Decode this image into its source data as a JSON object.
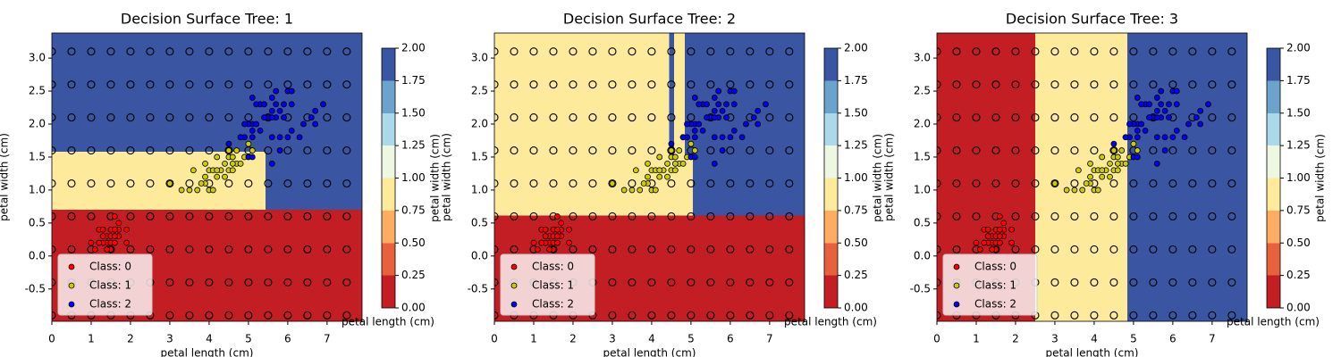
{
  "chart_data": [
    {
      "type": "surface",
      "title": "Decision Surface Tree: 1",
      "xlabel": "petal length (cm)",
      "ylabel": "petal width (cm)",
      "xlim": [
        0,
        7.89
      ],
      "ylim": [
        -0.99,
        3.38
      ],
      "xticks": [
        0,
        1,
        2,
        3,
        4,
        5,
        6,
        7
      ],
      "yticks": [
        -0.5,
        {
          "value": 0,
          "label": "0.0"
        },
        0.5,
        {
          "value": 1,
          "label": "1.0"
        },
        1.5,
        {
          "value": 2,
          "label": "2.0"
        },
        2.5,
        {
          "value": 3,
          "label": "3.0"
        }
      ],
      "regions": [
        {
          "x": [
            0,
            7.89
          ],
          "y": [
            -0.99,
            0.7
          ],
          "color": "#c41e25"
        },
        {
          "x": [
            0,
            5.43
          ],
          "y": [
            0.7,
            1.58
          ],
          "color": "#feea9b"
        },
        {
          "x": [
            5.43,
            7.89
          ],
          "y": [
            0.7,
            1.58
          ],
          "color": "#3a56a3"
        },
        {
          "x": [
            0,
            7.89
          ],
          "y": [
            1.58,
            3.38
          ],
          "color": "#3a56a3"
        }
      ],
      "mesh_x": [
        0,
        0.5,
        1,
        1.5,
        2,
        2.5,
        3,
        3.5,
        4,
        4.5,
        5,
        5.5,
        6,
        6.5,
        7,
        7.5
      ],
      "mesh_y": [
        -0.9,
        -0.4,
        0.1,
        0.6,
        1.1,
        1.6,
        2.1,
        2.6,
        3.1
      ],
      "legend": "lower left",
      "series": [
        {
          "name": "Class: 0",
          "color": "#ff0000",
          "x": [
            1.4,
            1.3,
            1.5,
            1.7,
            1.4,
            1.5,
            1.6,
            1.1,
            1.2,
            1.0,
            1.7,
            1.9,
            1.6,
            1.9,
            1.5,
            1.3,
            1.4,
            1.6,
            1.2,
            1.5,
            1.3,
            1.7,
            1.6
          ],
          "values": [
            0.2,
            0.2,
            0.2,
            0.4,
            0.3,
            0.1,
            0.2,
            0.1,
            0.2,
            0.2,
            0.5,
            0.2,
            0.6,
            0.4,
            0.4,
            0.3,
            0.1,
            0.4,
            0.4,
            0.3,
            0.4,
            0.3,
            0.3
          ]
        },
        {
          "name": "Class: 1",
          "color": "#cccc00",
          "x": [
            4.7,
            4.5,
            4.9,
            4.0,
            4.6,
            4.5,
            4.7,
            3.3,
            4.6,
            3.9,
            3.5,
            4.2,
            4.0,
            3.6,
            4.4,
            4.1,
            3.9,
            4.8,
            4.3,
            4.8,
            5.0,
            3.8,
            3.7,
            5.1,
            4.5,
            4.4,
            4.1,
            3.0,
            4.2,
            4.2,
            4.6,
            3.9
          ],
          "values": [
            1.4,
            1.5,
            1.5,
            1.3,
            1.5,
            1.3,
            1.6,
            1.0,
            1.3,
            1.4,
            1.0,
            1.5,
            1.0,
            1.3,
            1.4,
            1.0,
            1.1,
            1.8,
            1.3,
            1.4,
            1.7,
            1.1,
            1.0,
            1.6,
            1.6,
            1.2,
            1.3,
            1.1,
            1.2,
            1.3,
            1.4,
            1.2
          ]
        },
        {
          "name": "Class: 2",
          "color": "#0000ff",
          "x": [
            6.0,
            5.1,
            5.9,
            5.6,
            5.8,
            6.6,
            4.5,
            6.3,
            5.8,
            6.1,
            5.1,
            5.3,
            5.5,
            5.0,
            5.1,
            5.3,
            6.7,
            6.9,
            5.0,
            5.7,
            4.9,
            6.7,
            4.9,
            5.7,
            6.0,
            4.8,
            5.6,
            5.8,
            6.1,
            6.4,
            5.6,
            5.1,
            5.6,
            6.1,
            5.6,
            5.4,
            5.9,
            5.7,
            5.2,
            5.2,
            5.4,
            5.1
          ],
          "values": [
            2.5,
            1.9,
            2.1,
            1.8,
            2.2,
            2.1,
            1.7,
            1.8,
            1.8,
            2.5,
            2.0,
            1.9,
            2.1,
            2.0,
            2.4,
            2.3,
            2.2,
            2.3,
            1.5,
            2.3,
            2.0,
            2.0,
            1.8,
            2.1,
            1.8,
            1.8,
            2.1,
            1.6,
            1.9,
            2.0,
            2.2,
            1.5,
            1.4,
            2.3,
            2.4,
            2.1,
            2.3,
            2.5,
            2.3,
            2.0,
            2.3,
            1.8
          ]
        }
      ],
      "colorbar": {
        "ylabel": "petal width (cm)",
        "xlabel": "petal length (cm)",
        "colors": [
          "#c41e25",
          "#e8603c",
          "#fdad61",
          "#feea9b",
          "#eef7e2",
          "#acd9e9",
          "#6ba3cc",
          "#3a56a3"
        ],
        "ticks": [
          {
            "value": 0,
            "label": "0.00"
          },
          {
            "value": 0.25,
            "label": "0.25"
          },
          {
            "value": 0.5,
            "label": "0.50"
          },
          {
            "value": 0.75,
            "label": "0.75"
          },
          {
            "value": 1,
            "label": "1.00"
          },
          {
            "value": 1.25,
            "label": "1.25"
          },
          {
            "value": 1.5,
            "label": "1.50"
          },
          {
            "value": 1.75,
            "label": "1.75"
          },
          {
            "value": 2,
            "label": "2.00"
          }
        ]
      }
    },
    {
      "type": "surface",
      "title": "Decision Surface Tree: 2",
      "xlabel": "petal length (cm)",
      "ylabel": "petal width (cm)",
      "xlim": [
        0,
        7.89
      ],
      "ylim": [
        -0.99,
        3.38
      ],
      "xticks": [
        0,
        1,
        2,
        3,
        4,
        5,
        6,
        7
      ],
      "yticks": [
        -0.5,
        {
          "value": 0,
          "label": "0.0"
        },
        0.5,
        {
          "value": 1,
          "label": "1.0"
        },
        1.5,
        {
          "value": 2,
          "label": "2.0"
        },
        2.5,
        {
          "value": 3,
          "label": "3.0"
        }
      ],
      "regions": [
        {
          "x": [
            0,
            7.89
          ],
          "y": [
            -0.99,
            0.61
          ],
          "color": "#c41e25"
        },
        {
          "x": [
            0,
            7.89
          ],
          "y": [
            0.61,
            3.38
          ],
          "color": "#feea9b"
        },
        {
          "x": [
            4.45,
            4.57
          ],
          "y": [
            1.51,
            3.38
          ],
          "color": "#3a56a3"
        },
        {
          "x": [
            4.84,
            7.89
          ],
          "y": [
            1.51,
            3.38
          ],
          "color": "#3a56a3"
        },
        {
          "x": [
            5.05,
            7.89
          ],
          "y": [
            0.61,
            1.51
          ],
          "color": "#3a56a3"
        }
      ],
      "mesh_x": [
        0,
        0.5,
        1,
        1.5,
        2,
        2.5,
        3,
        3.5,
        4,
        4.5,
        5,
        5.5,
        6,
        6.5,
        7,
        7.5
      ],
      "mesh_y": [
        -0.9,
        -0.4,
        0.1,
        0.6,
        1.1,
        1.6,
        2.1,
        2.6,
        3.1
      ],
      "legend": "lower left",
      "series": [
        {
          "name": "Class: 0",
          "color": "#ff0000",
          "x": [
            1.4,
            1.3,
            1.5,
            1.7,
            1.4,
            1.5,
            1.6,
            1.1,
            1.2,
            1.0,
            1.7,
            1.9,
            1.6,
            1.9,
            1.5,
            1.3,
            1.4,
            1.6,
            1.2,
            1.5,
            1.3,
            1.7,
            1.6
          ],
          "values": [
            0.2,
            0.2,
            0.2,
            0.4,
            0.3,
            0.1,
            0.2,
            0.1,
            0.2,
            0.2,
            0.5,
            0.2,
            0.6,
            0.4,
            0.4,
            0.3,
            0.1,
            0.4,
            0.4,
            0.3,
            0.4,
            0.3,
            0.3
          ]
        },
        {
          "name": "Class: 1",
          "color": "#cccc00",
          "x": [
            4.7,
            4.5,
            4.9,
            4.0,
            4.6,
            4.5,
            4.7,
            3.3,
            4.6,
            3.9,
            3.5,
            4.2,
            4.0,
            3.6,
            4.4,
            4.1,
            3.9,
            4.8,
            4.3,
            4.8,
            5.0,
            3.8,
            3.7,
            5.1,
            4.5,
            4.4,
            4.1,
            3.0,
            4.2,
            4.2,
            4.6,
            3.9
          ],
          "values": [
            1.4,
            1.5,
            1.5,
            1.3,
            1.5,
            1.3,
            1.6,
            1.0,
            1.3,
            1.4,
            1.0,
            1.5,
            1.0,
            1.3,
            1.4,
            1.0,
            1.1,
            1.8,
            1.3,
            1.4,
            1.7,
            1.1,
            1.0,
            1.6,
            1.6,
            1.2,
            1.3,
            1.1,
            1.2,
            1.3,
            1.4,
            1.2
          ]
        },
        {
          "name": "Class: 2",
          "color": "#0000ff",
          "x": [
            6.0,
            5.1,
            5.9,
            5.6,
            5.8,
            6.6,
            4.5,
            6.3,
            5.8,
            6.1,
            5.1,
            5.3,
            5.5,
            5.0,
            5.1,
            5.3,
            6.7,
            6.9,
            5.0,
            5.7,
            4.9,
            6.7,
            4.9,
            5.7,
            6.0,
            4.8,
            5.6,
            5.8,
            6.1,
            6.4,
            5.6,
            5.1,
            5.6,
            6.1,
            5.6,
            5.4,
            5.9,
            5.7,
            5.2,
            5.2,
            5.4,
            5.1
          ],
          "values": [
            2.5,
            1.9,
            2.1,
            1.8,
            2.2,
            2.1,
            1.7,
            1.8,
            1.8,
            2.5,
            2.0,
            1.9,
            2.1,
            2.0,
            2.4,
            2.3,
            2.2,
            2.3,
            1.5,
            2.3,
            2.0,
            2.0,
            1.8,
            2.1,
            1.8,
            1.8,
            2.1,
            1.6,
            1.9,
            2.0,
            2.2,
            1.5,
            1.4,
            2.3,
            2.4,
            2.1,
            2.3,
            2.5,
            2.3,
            2.0,
            2.3,
            1.8
          ]
        }
      ],
      "colorbar": {
        "ylabel": "petal width (cm)",
        "xlabel": "petal length (cm)",
        "colors": [
          "#c41e25",
          "#e8603c",
          "#fdad61",
          "#feea9b",
          "#eef7e2",
          "#acd9e9",
          "#6ba3cc",
          "#3a56a3"
        ],
        "ticks": [
          {
            "value": 0,
            "label": "0.00"
          },
          {
            "value": 0.25,
            "label": "0.25"
          },
          {
            "value": 0.5,
            "label": "0.50"
          },
          {
            "value": 0.75,
            "label": "0.75"
          },
          {
            "value": 1,
            "label": "1.00"
          },
          {
            "value": 1.25,
            "label": "1.25"
          },
          {
            "value": 1.5,
            "label": "1.50"
          },
          {
            "value": 1.75,
            "label": "1.75"
          },
          {
            "value": 2,
            "label": "2.00"
          }
        ]
      }
    },
    {
      "type": "surface",
      "title": "Decision Surface Tree: 3",
      "xlabel": "petal length (cm)",
      "ylabel": "petal width (cm)",
      "xlim": [
        0,
        7.89
      ],
      "ylim": [
        -0.99,
        3.38
      ],
      "xticks": [
        0,
        1,
        2,
        3,
        4,
        5,
        6,
        7
      ],
      "yticks": [
        -0.5,
        {
          "value": 0,
          "label": "0.0"
        },
        0.5,
        {
          "value": 1,
          "label": "1.0"
        },
        1.5,
        {
          "value": 2,
          "label": "2.0"
        },
        2.5,
        {
          "value": 3,
          "label": "3.0"
        }
      ],
      "regions": [
        {
          "x": [
            0,
            2.5
          ],
          "y": [
            -0.99,
            3.38
          ],
          "color": "#c41e25"
        },
        {
          "x": [
            2.5,
            4.84
          ],
          "y": [
            -0.99,
            3.38
          ],
          "color": "#feea9b"
        },
        {
          "x": [
            4.84,
            7.89
          ],
          "y": [
            -0.99,
            3.38
          ],
          "color": "#3a56a3"
        }
      ],
      "mesh_x": [
        0,
        0.5,
        1,
        1.5,
        2,
        2.5,
        3,
        3.5,
        4,
        4.5,
        5,
        5.5,
        6,
        6.5,
        7,
        7.5
      ],
      "mesh_y": [
        -0.9,
        -0.4,
        0.1,
        0.6,
        1.1,
        1.6,
        2.1,
        2.6,
        3.1
      ],
      "legend": "lower left",
      "series": [
        {
          "name": "Class: 0",
          "color": "#ff0000",
          "x": [
            1.4,
            1.3,
            1.5,
            1.7,
            1.4,
            1.5,
            1.6,
            1.1,
            1.2,
            1.0,
            1.7,
            1.9,
            1.6,
            1.9,
            1.5,
            1.3,
            1.4,
            1.6,
            1.2,
            1.5,
            1.3,
            1.7,
            1.6
          ],
          "values": [
            0.2,
            0.2,
            0.2,
            0.4,
            0.3,
            0.1,
            0.2,
            0.1,
            0.2,
            0.2,
            0.5,
            0.2,
            0.6,
            0.4,
            0.4,
            0.3,
            0.1,
            0.4,
            0.4,
            0.3,
            0.4,
            0.3,
            0.3
          ]
        },
        {
          "name": "Class: 1",
          "color": "#cccc00",
          "x": [
            4.7,
            4.5,
            4.9,
            4.0,
            4.6,
            4.5,
            4.7,
            3.3,
            4.6,
            3.9,
            3.5,
            4.2,
            4.0,
            3.6,
            4.4,
            4.1,
            3.9,
            4.8,
            4.3,
            4.8,
            5.0,
            3.8,
            3.7,
            5.1,
            4.5,
            4.4,
            4.1,
            3.0,
            4.2,
            4.2,
            4.6,
            3.9
          ],
          "values": [
            1.4,
            1.5,
            1.5,
            1.3,
            1.5,
            1.3,
            1.6,
            1.0,
            1.3,
            1.4,
            1.0,
            1.5,
            1.0,
            1.3,
            1.4,
            1.0,
            1.1,
            1.8,
            1.3,
            1.4,
            1.7,
            1.1,
            1.0,
            1.6,
            1.6,
            1.2,
            1.3,
            1.1,
            1.2,
            1.3,
            1.4,
            1.2
          ]
        },
        {
          "name": "Class: 2",
          "color": "#0000ff",
          "x": [
            6.0,
            5.1,
            5.9,
            5.6,
            5.8,
            6.6,
            4.5,
            6.3,
            5.8,
            6.1,
            5.1,
            5.3,
            5.5,
            5.0,
            5.1,
            5.3,
            6.7,
            6.9,
            5.0,
            5.7,
            4.9,
            6.7,
            4.9,
            5.7,
            6.0,
            4.8,
            5.6,
            5.8,
            6.1,
            6.4,
            5.6,
            5.1,
            5.6,
            6.1,
            5.6,
            5.4,
            5.9,
            5.7,
            5.2,
            5.2,
            5.4,
            5.1
          ],
          "values": [
            2.5,
            1.9,
            2.1,
            1.8,
            2.2,
            2.1,
            1.7,
            1.8,
            1.8,
            2.5,
            2.0,
            1.9,
            2.1,
            2.0,
            2.4,
            2.3,
            2.2,
            2.3,
            1.5,
            2.3,
            2.0,
            2.0,
            1.8,
            2.1,
            1.8,
            1.8,
            2.1,
            1.6,
            1.9,
            2.0,
            2.2,
            1.5,
            1.4,
            2.3,
            2.4,
            2.1,
            2.3,
            2.5,
            2.3,
            2.0,
            2.3,
            1.8
          ]
        }
      ],
      "colorbar": {
        "ylabel": "petal width (cm)",
        "xlabel": "petal length (cm)",
        "colors": [
          "#c41e25",
          "#e8603c",
          "#fdad61",
          "#feea9b",
          "#eef7e2",
          "#acd9e9",
          "#6ba3cc",
          "#3a56a3"
        ],
        "ticks": [
          {
            "value": 0,
            "label": "0.00"
          },
          {
            "value": 0.25,
            "label": "0.25"
          },
          {
            "value": 0.5,
            "label": "0.50"
          },
          {
            "value": 0.75,
            "label": "0.75"
          },
          {
            "value": 1,
            "label": "1.00"
          },
          {
            "value": 1.25,
            "label": "1.25"
          },
          {
            "value": 1.5,
            "label": "1.50"
          },
          {
            "value": 1.75,
            "label": "1.75"
          },
          {
            "value": 2,
            "label": "2.00"
          }
        ]
      }
    }
  ]
}
